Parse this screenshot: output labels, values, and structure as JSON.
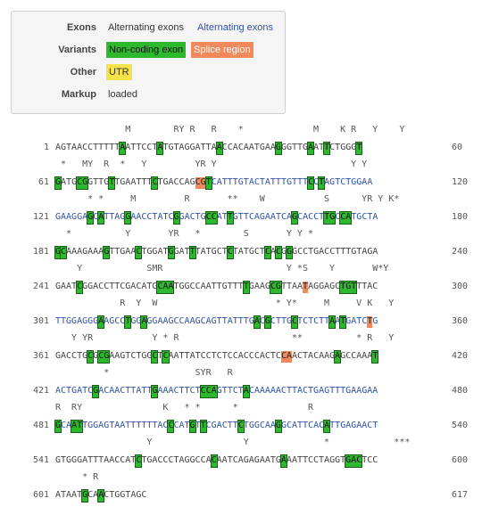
{
  "legend": {
    "exons": {
      "label": "Exons",
      "options": [
        "Alternating exons",
        "Alternating exons"
      ]
    },
    "variants": {
      "label": "Variants",
      "options": [
        "Non-coding exon",
        "Splice region"
      ]
    },
    "other": {
      "label": "Other",
      "options": [
        "UTR"
      ]
    },
    "markup": {
      "label": "Markup",
      "value": "loaded"
    },
    "colors": {
      "exon_alt": "#2f52a6",
      "non_coding": "#2eb82e",
      "splice": "#f08a5d",
      "utr": "#f5e24a"
    }
  },
  "sequence_blocks": [
    {
      "start": "1",
      "end": "60",
      "annot": "             M        RY R   R    *             M    K R   Y    Y",
      "segs": [
        [
          "AGTAACCTTTTT",
          ""
        ],
        [
          "A",
          "g"
        ],
        [
          "ATTCCT",
          "n"
        ],
        [
          "A",
          "g"
        ],
        [
          "TGTAGGATTA",
          "n"
        ],
        [
          "A",
          "g"
        ],
        [
          "CCACAATGAA",
          "n"
        ],
        [
          "G",
          "g"
        ],
        [
          "GGTTG",
          "n"
        ],
        [
          "A",
          "g"
        ],
        [
          "AT",
          "n"
        ],
        [
          "T",
          "g"
        ],
        [
          "CTGGG",
          "n"
        ],
        [
          "T",
          "g"
        ]
      ]
    },
    {
      "start": "61",
      "end": "120",
      "annot": " *   MY  R  *   Y         YR Y                         Y Y",
      "segs": [
        [
          "G",
          "g"
        ],
        [
          "ATG",
          "n"
        ],
        [
          "CG",
          "g"
        ],
        [
          "GTTG",
          "n"
        ],
        [
          "T",
          "g"
        ],
        [
          "TGAATTT",
          "n"
        ],
        [
          "C",
          "g"
        ],
        [
          "TGACCAG",
          "n"
        ],
        [
          "CG",
          "o"
        ],
        [
          "T",
          "g"
        ],
        [
          "CATTTGTACTATTTGTTT",
          "b"
        ],
        [
          "C",
          "g"
        ],
        [
          "C",
          "b"
        ],
        [
          "T",
          "g"
        ],
        [
          "AGTCTGGAA",
          "b"
        ]
      ]
    },
    {
      "start": "121",
      "end": "180",
      "annot": "      * *     M         R       **    W           S      YR Y K*",
      "segs": [
        [
          "GAAGGA",
          "b"
        ],
        [
          "G",
          "g"
        ],
        [
          "C",
          "b"
        ],
        [
          "A",
          "g"
        ],
        [
          "TTAG",
          "b"
        ],
        [
          "G",
          "g"
        ],
        [
          "AACCTATC",
          "b"
        ],
        [
          "G",
          "g"
        ],
        [
          "GACTG",
          "b"
        ],
        [
          "CC",
          "g"
        ],
        [
          "AT",
          "b"
        ],
        [
          "T",
          "g"
        ],
        [
          "GTTCAGAATCA",
          "b"
        ],
        [
          "G",
          "g"
        ],
        [
          "CACCT",
          "b"
        ],
        [
          "TG",
          "g"
        ],
        [
          "C",
          "b"
        ],
        [
          "CA",
          "g"
        ],
        [
          "TGCTA",
          "b"
        ]
      ]
    },
    {
      "start": "181",
      "end": "240",
      "annot": "  *          Y       YR   *        S       Y Y *",
      "segs": [
        [
          "G",
          "g"
        ],
        [
          "C",
          "g"
        ],
        [
          "AAAGAAA",
          "n"
        ],
        [
          "G",
          "g"
        ],
        [
          "TTGAA",
          "n"
        ],
        [
          "C",
          "g"
        ],
        [
          "TGGAT",
          "n"
        ],
        [
          "G",
          "g"
        ],
        [
          "GAT",
          "n"
        ],
        [
          "T",
          "g"
        ],
        [
          "TATGCT",
          "n"
        ],
        [
          "C",
          "g"
        ],
        [
          "TATGCT",
          "n"
        ],
        [
          "C",
          "g"
        ],
        [
          "A",
          "n"
        ],
        [
          "C",
          "g"
        ],
        [
          "G",
          "n"
        ],
        [
          "G",
          "g"
        ],
        [
          "GCCTGACCTTTGTAGA",
          "n"
        ]
      ]
    },
    {
      "start": "241",
      "end": "300",
      "annot": "    Y            SMR                       Y *S    Y       W*Y",
      "segs": [
        [
          "GAAT",
          "n"
        ],
        [
          "C",
          "g"
        ],
        [
          "GGACCTTCGACATG",
          "n"
        ],
        [
          "CAA",
          "g"
        ],
        [
          "TGGCCAATTGTTT",
          "n"
        ],
        [
          "T",
          "g"
        ],
        [
          "GAAG",
          "n"
        ],
        [
          "CG",
          "g"
        ],
        [
          "TTAA",
          "n"
        ],
        [
          "T",
          "o"
        ],
        [
          "AGGAGC",
          "n"
        ],
        [
          "TGT",
          "g"
        ],
        [
          "TTAC",
          "n"
        ]
      ]
    },
    {
      "start": "301",
      "end": "360",
      "annot": "            R  Y  W                      * Y*     M     V K   Y",
      "segs": [
        [
          "TTGGAGGG",
          "b"
        ],
        [
          "A",
          "g"
        ],
        [
          "AGCC",
          "b"
        ],
        [
          "T",
          "g"
        ],
        [
          "GG",
          "b"
        ],
        [
          "A",
          "g"
        ],
        [
          "GGAAGCCAAGCAGTTATTTG",
          "b"
        ],
        [
          "A",
          "g"
        ],
        [
          "C",
          "b"
        ],
        [
          "G",
          "g"
        ],
        [
          "CTTG",
          "b"
        ],
        [
          "C",
          "g"
        ],
        [
          "TCTCTT",
          "b"
        ],
        [
          "A",
          "g"
        ],
        [
          "A",
          "b"
        ],
        [
          "T",
          "g"
        ],
        [
          "GATC",
          "b"
        ],
        [
          "T",
          "o"
        ],
        [
          "G",
          "b"
        ]
      ]
    },
    {
      "start": "361",
      "end": "420",
      "annot": "   Y YR           Y * R                     **          * R   Y",
      "segs": [
        [
          "GACCTG",
          "n"
        ],
        [
          "C",
          "g"
        ],
        [
          "G",
          "n"
        ],
        [
          "CG",
          "g"
        ],
        [
          "AAGTCTGG",
          "n"
        ],
        [
          "C",
          "g"
        ],
        [
          "T",
          "n"
        ],
        [
          "C",
          "g"
        ],
        [
          "AATTATCCTCTCCACCCACTC",
          "n"
        ],
        [
          "CA",
          "o"
        ],
        [
          "ACTACAAG",
          "n"
        ],
        [
          "A",
          "g"
        ],
        [
          "GCCAAA",
          "n"
        ],
        [
          "T",
          "g"
        ]
      ]
    },
    {
      "start": "421",
      "end": "480",
      "annot": "         *                SYR   R",
      "segs": [
        [
          "ACTGATC",
          "b"
        ],
        [
          "G",
          "g"
        ],
        [
          "ACAACTTATT",
          "b"
        ],
        [
          "G",
          "g"
        ],
        [
          "AAACTTCT",
          "b"
        ],
        [
          "CCA",
          "g"
        ],
        [
          "GTTCT",
          "b"
        ],
        [
          "A",
          "g"
        ],
        [
          "CAAAAACTTACTGAGTTTGAAGAA",
          "b"
        ]
      ]
    },
    {
      "start": "481",
      "end": "540",
      "annot": "R  RY               K   * *      *             R",
      "segs": [
        [
          "G",
          "g"
        ],
        [
          "CA",
          "b"
        ],
        [
          "AT",
          "g"
        ],
        [
          "TGGAGTAATTTTTTAC",
          "b"
        ],
        [
          "C",
          "g"
        ],
        [
          "CAT",
          "b"
        ],
        [
          "G",
          "g"
        ],
        [
          "T",
          "b"
        ],
        [
          "T",
          "g"
        ],
        [
          "CGACTT",
          "b"
        ],
        [
          "C",
          "g"
        ],
        [
          "TGGCAA",
          "b"
        ],
        [
          "G",
          "g"
        ],
        [
          "GCATTCAC",
          "b"
        ],
        [
          "A",
          "g"
        ],
        [
          "TTGAGAACT",
          "b"
        ]
      ]
    },
    {
      "start": "541",
      "end": "600",
      "annot": "                 Y                 Y              *            ***",
      "segs": [
        [
          "GTGGGATTTAACCAT",
          "n"
        ],
        [
          "C",
          "g"
        ],
        [
          "TGACCCTAGGCCA",
          "n"
        ],
        [
          "C",
          "g"
        ],
        [
          "AATCAGAGAATG",
          "n"
        ],
        [
          "A",
          "g"
        ],
        [
          "AATTCCTAGGT",
          "n"
        ],
        [
          "GAC",
          "g"
        ],
        [
          "TCC",
          "n"
        ]
      ]
    },
    {
      "start": "601",
      "end": "617",
      "annot": "     * R",
      "segs": [
        [
          "ATAAT",
          "n"
        ],
        [
          "G",
          "g"
        ],
        [
          "CA",
          "n"
        ],
        [
          "A",
          "g"
        ],
        [
          "CTGGTAGC",
          "n"
        ]
      ]
    }
  ]
}
